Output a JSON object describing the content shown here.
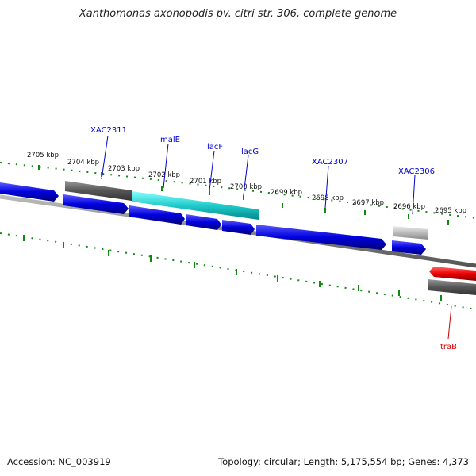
{
  "title": "Xanthomonas axonopodis pv. citri str. 306, complete genome",
  "footer": {
    "accession": "Accession: NC_003919",
    "stats": "Topology: circular; Length: 5,175,554 bp; Genes: 4,373"
  },
  "colors": {
    "forward_cds": "#0000dd",
    "reverse_cds": "#ee0000",
    "other_feature": "#555555",
    "highlight_feature": "#22cccc",
    "gray_feature": "#aaaaaa",
    "tick": "#118811",
    "label_fwd": "#0000cc",
    "label_rev": "#cc0000"
  },
  "scale_labels": [
    "2705 kbp",
    "2704 kbp",
    "2703 kbp",
    "2702 kbp",
    "2701 kbp",
    "2700 kbp",
    "2699 kbp",
    "2698 kbp",
    "2697 kbp",
    "2696 kbp",
    "2695 kbp"
  ],
  "gene_labels": [
    {
      "text": "XAC2311",
      "strand": "forward"
    },
    {
      "text": "malE",
      "strand": "forward"
    },
    {
      "text": "lacF",
      "strand": "forward"
    },
    {
      "text": "lacG",
      "strand": "forward"
    },
    {
      "text": "XAC2307",
      "strand": "forward"
    },
    {
      "text": "XAC2306",
      "strand": "forward"
    },
    {
      "text": "traB",
      "strand": "reverse"
    }
  ],
  "features": [
    {
      "strand": "forward",
      "kind": "cds"
    },
    {
      "strand": "forward",
      "kind": "other"
    },
    {
      "strand": "forward",
      "kind": "cds"
    },
    {
      "strand": "forward",
      "kind": "highlight"
    },
    {
      "strand": "forward",
      "kind": "cds"
    },
    {
      "strand": "forward",
      "kind": "cds"
    },
    {
      "strand": "forward",
      "kind": "cds"
    },
    {
      "strand": "forward",
      "kind": "cds"
    },
    {
      "strand": "forward",
      "kind": "gray"
    },
    {
      "strand": "forward",
      "kind": "cds"
    },
    {
      "strand": "reverse",
      "kind": "cds"
    },
    {
      "strand": "reverse",
      "kind": "other"
    }
  ]
}
